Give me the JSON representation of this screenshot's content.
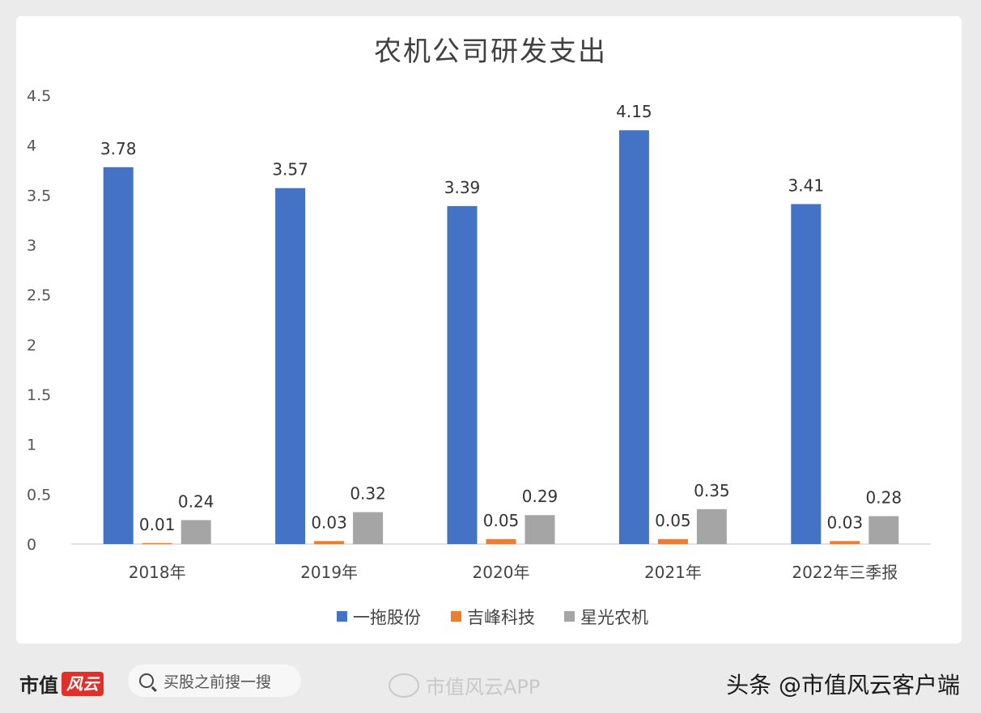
{
  "chart_data": {
    "type": "bar",
    "title": "农机公司研发支出",
    "categories": [
      "2018年",
      "2019年",
      "2020年",
      "2021年",
      "2022年三季报"
    ],
    "series": [
      {
        "name": "一拖股份",
        "color": "#4472c4",
        "values": [
          3.78,
          3.57,
          3.39,
          4.15,
          3.41
        ]
      },
      {
        "name": "吉峰科技",
        "color": "#ed7d31",
        "values": [
          0.01,
          0.03,
          0.05,
          0.05,
          0.03
        ]
      },
      {
        "name": "星光农机",
        "color": "#a5a5a5",
        "values": [
          0.24,
          0.32,
          0.29,
          0.35,
          0.28
        ]
      }
    ],
    "yticks": [
      "0",
      "0.5",
      "1",
      "1.5",
      "2",
      "2.5",
      "3",
      "3.5",
      "4",
      "4.5"
    ],
    "ylim": [
      0,
      4.5
    ],
    "grid": false,
    "legend": "bottom"
  },
  "footer": {
    "brand_text": "市值",
    "brand_mark": "风云",
    "search_placeholder": "买股之前搜一搜",
    "weibo_text": "市值风云APP",
    "toutiao_text": "头条 @市值风云客户端"
  }
}
